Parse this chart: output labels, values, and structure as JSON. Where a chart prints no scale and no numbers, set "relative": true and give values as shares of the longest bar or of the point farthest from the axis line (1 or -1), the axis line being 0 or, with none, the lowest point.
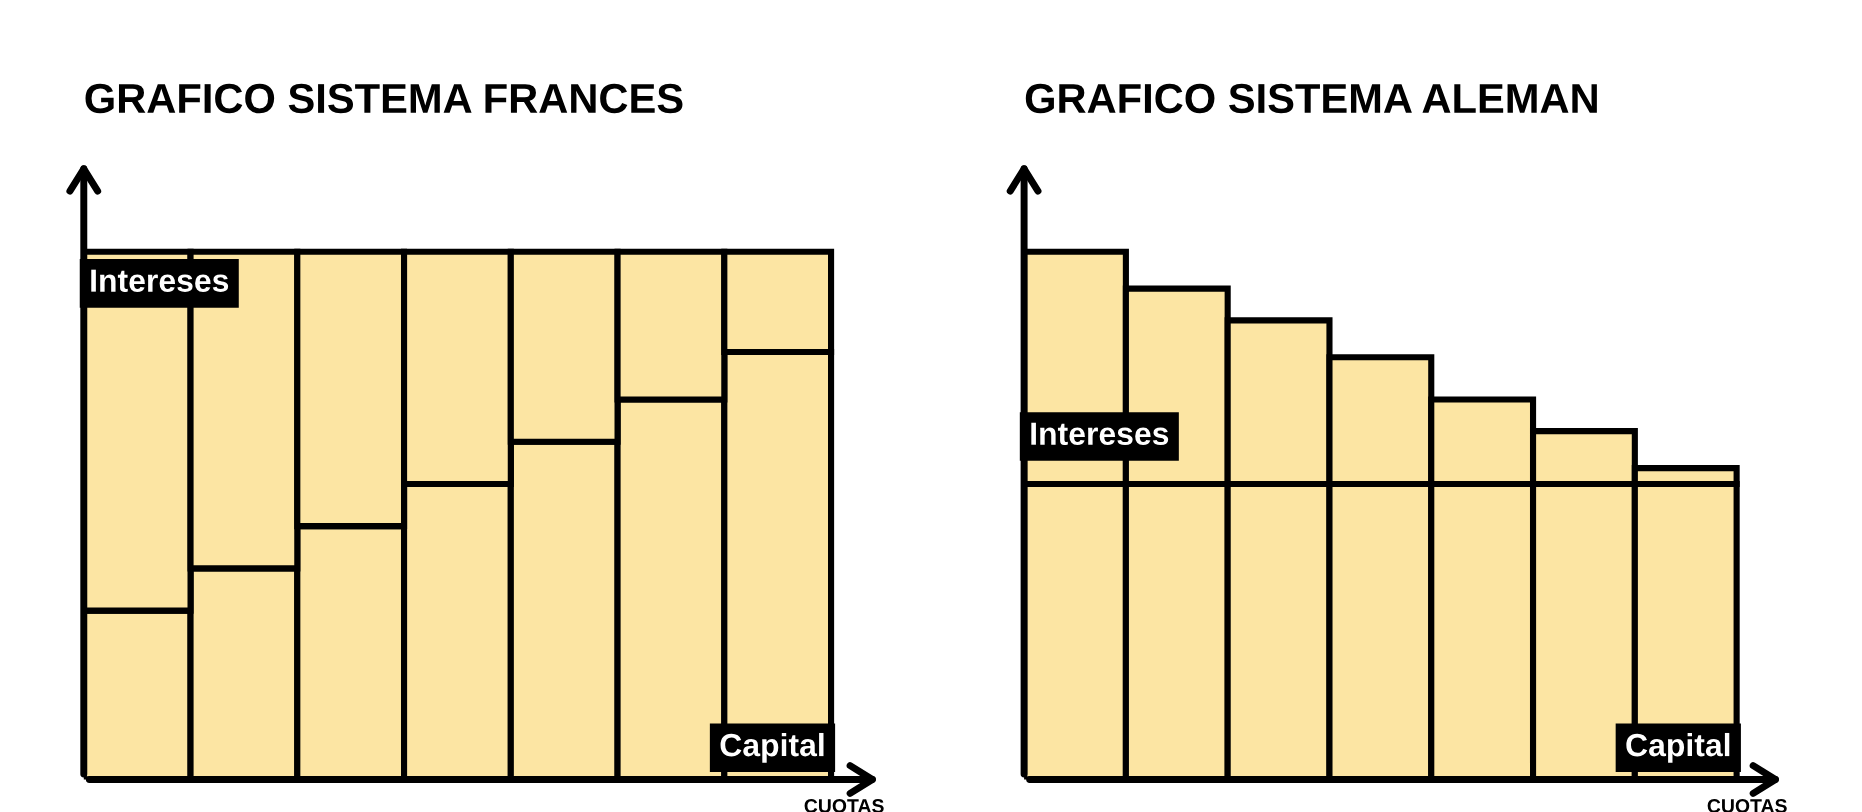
{
  "chart_data": [
    {
      "type": "bar",
      "title": "GRAFICO SISTEMA FRANCES",
      "xlabel": "CUOTAS",
      "relative": true,
      "stacked": true,
      "categories": [
        null,
        null,
        null,
        null,
        null,
        null,
        null
      ],
      "series": [
        {
          "name": "Capital",
          "color": "#fce5a3",
          "values": [
            0.32,
            0.4,
            0.48,
            0.56,
            0.64,
            0.72,
            0.81
          ]
        },
        {
          "name": "Intereses",
          "color": "#fce5a3",
          "values": [
            0.68,
            0.6,
            0.52,
            0.44,
            0.36,
            0.28,
            0.19
          ]
        }
      ]
    },
    {
      "type": "bar",
      "title": "GRAFICO SISTEMA ALEMAN",
      "xlabel": "CUOTAS",
      "relative": true,
      "stacked": true,
      "categories": [
        null,
        null,
        null,
        null,
        null,
        null,
        null
      ],
      "series": [
        {
          "name": "Capital",
          "color": "#fce5a3",
          "values": [
            0.56,
            0.56,
            0.56,
            0.56,
            0.56,
            0.56,
            0.56
          ]
        },
        {
          "name": "Intereses",
          "color": "#fce5a3",
          "values": [
            0.44,
            0.37,
            0.31,
            0.24,
            0.16,
            0.1,
            0.03
          ]
        }
      ]
    }
  ]
}
